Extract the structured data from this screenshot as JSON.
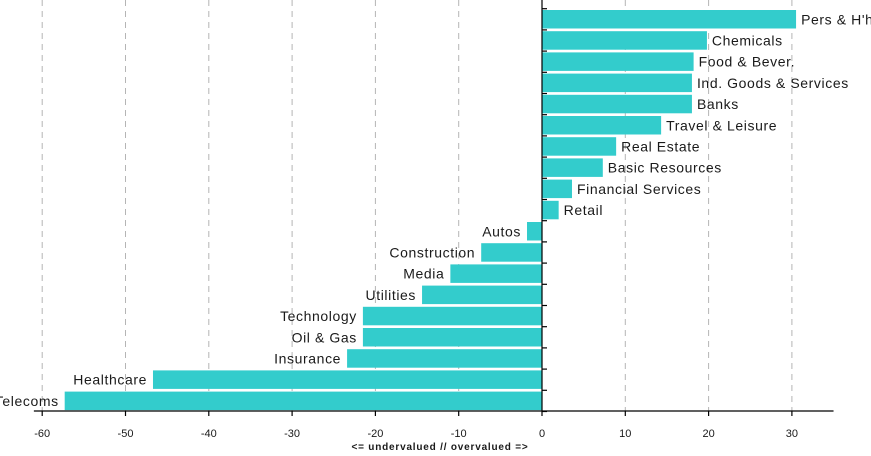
{
  "chart_data": {
    "type": "bar",
    "orientation": "horizontal",
    "categories": [
      "Pers & H'hold Goods",
      "Chemicals",
      "Food & Bever.",
      "Ind. Goods & Services",
      "Banks",
      "Travel & Leisure",
      "Real Estate",
      "Basic Resources",
      "Financial Services",
      "Retail",
      "Autos",
      "Construction",
      "Media",
      "Utilities",
      "Technology",
      "Oil & Gas",
      "Insurance",
      "Healthcare",
      "Telecoms"
    ],
    "values": [
      30.5,
      19.8,
      18.2,
      18.0,
      18.0,
      14.3,
      8.9,
      7.3,
      3.6,
      2.0,
      -1.8,
      -7.3,
      -11.0,
      -14.4,
      -21.5,
      -21.5,
      -23.4,
      -46.7,
      -57.3
    ],
    "xlabel": "<= undervalued // overvalued =>",
    "xlim": [
      -61,
      35
    ],
    "xticks": [
      -60,
      -50,
      -40,
      -30,
      -20,
      -10,
      0,
      10,
      20,
      30
    ],
    "grid": "vertical dashed",
    "bar_color": "#33cccc"
  }
}
